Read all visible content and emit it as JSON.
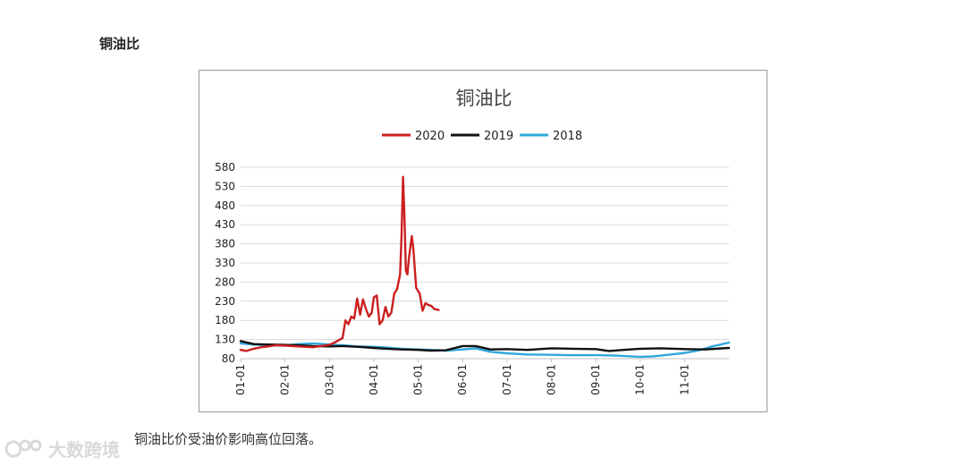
{
  "page": {
    "heading": "铜油比",
    "caption": "铜油比价受油价影响高位回落。",
    "watermark": "大数跨境"
  },
  "chart_data": {
    "type": "line",
    "title": "铜油比",
    "xlabel": "",
    "ylabel": "",
    "ylim": [
      80,
      580
    ],
    "yticks": [
      80,
      130,
      180,
      230,
      280,
      330,
      380,
      430,
      480,
      530,
      580
    ],
    "xlim": [
      "01-01",
      "12-01"
    ],
    "xticks": [
      "01-01",
      "02-01",
      "03-01",
      "04-01",
      "05-01",
      "06-01",
      "07-01",
      "08-01",
      "09-01",
      "10-01",
      "11-01"
    ],
    "grid": true,
    "legend_position": "top-center",
    "series": [
      {
        "name": "2020",
        "color": "#cc1f1f",
        "x": [
          "01-01",
          "01-05",
          "01-10",
          "01-15",
          "01-20",
          "01-25",
          "02-01",
          "02-10",
          "02-20",
          "03-01",
          "03-05",
          "03-10",
          "03-12",
          "03-14",
          "03-16",
          "03-18",
          "03-20",
          "03-22",
          "03-24",
          "03-26",
          "03-28",
          "03-30",
          "04-01",
          "04-03",
          "04-05",
          "04-07",
          "04-09",
          "04-11",
          "04-13",
          "04-15",
          "04-17",
          "04-19",
          "04-20",
          "04-21",
          "04-22",
          "04-23",
          "04-24",
          "04-25",
          "04-27",
          "04-28",
          "04-29",
          "04-30",
          "05-02",
          "05-04",
          "05-06",
          "05-08",
          "05-10",
          "05-12",
          "05-14",
          "05-15"
        ],
        "values": [
          103,
          100,
          106,
          110,
          112,
          115,
          114,
          112,
          110,
          116,
          123,
          134,
          180,
          170,
          190,
          185,
          237,
          195,
          235,
          210,
          190,
          200,
          240,
          245,
          170,
          180,
          215,
          190,
          200,
          250,
          262,
          300,
          400,
          555,
          450,
          310,
          300,
          340,
          400,
          370,
          320,
          265,
          250,
          205,
          225,
          220,
          218,
          210,
          208,
          207
        ]
      },
      {
        "name": "2019",
        "color": "#111111",
        "x": [
          "01-01",
          "01-10",
          "01-20",
          "02-01",
          "02-10",
          "02-20",
          "03-01",
          "03-10",
          "03-20",
          "04-01",
          "04-10",
          "04-20",
          "05-01",
          "05-10",
          "05-20",
          "06-01",
          "06-10",
          "06-20",
          "07-01",
          "07-15",
          "08-01",
          "08-15",
          "09-01",
          "09-10",
          "09-20",
          "10-01",
          "10-15",
          "11-01",
          "11-15",
          "12-01"
        ],
        "values": [
          126,
          118,
          117,
          116,
          115,
          113,
          112,
          113,
          111,
          108,
          106,
          104,
          103,
          101,
          102,
          113,
          113,
          104,
          105,
          103,
          107,
          106,
          105,
          100,
          103,
          106,
          107,
          105,
          104,
          108
        ]
      },
      {
        "name": "2018",
        "color": "#2ea8dc",
        "x": [
          "01-01",
          "01-10",
          "01-20",
          "02-01",
          "02-10",
          "02-20",
          "03-01",
          "03-10",
          "03-20",
          "04-01",
          "04-10",
          "04-20",
          "05-01",
          "05-10",
          "05-20",
          "06-01",
          "06-10",
          "06-20",
          "07-01",
          "07-15",
          "08-01",
          "08-15",
          "09-01",
          "09-15",
          "10-01",
          "10-10",
          "10-20",
          "11-01",
          "11-10",
          "11-20",
          "12-01"
        ],
        "values": [
          120,
          117,
          115,
          114,
          118,
          120,
          117,
          115,
          112,
          111,
          109,
          106,
          104,
          103,
          101,
          104,
          107,
          98,
          94,
          91,
          90,
          89,
          89,
          88,
          85,
          86,
          90,
          95,
          101,
          112,
          122
        ]
      }
    ]
  }
}
